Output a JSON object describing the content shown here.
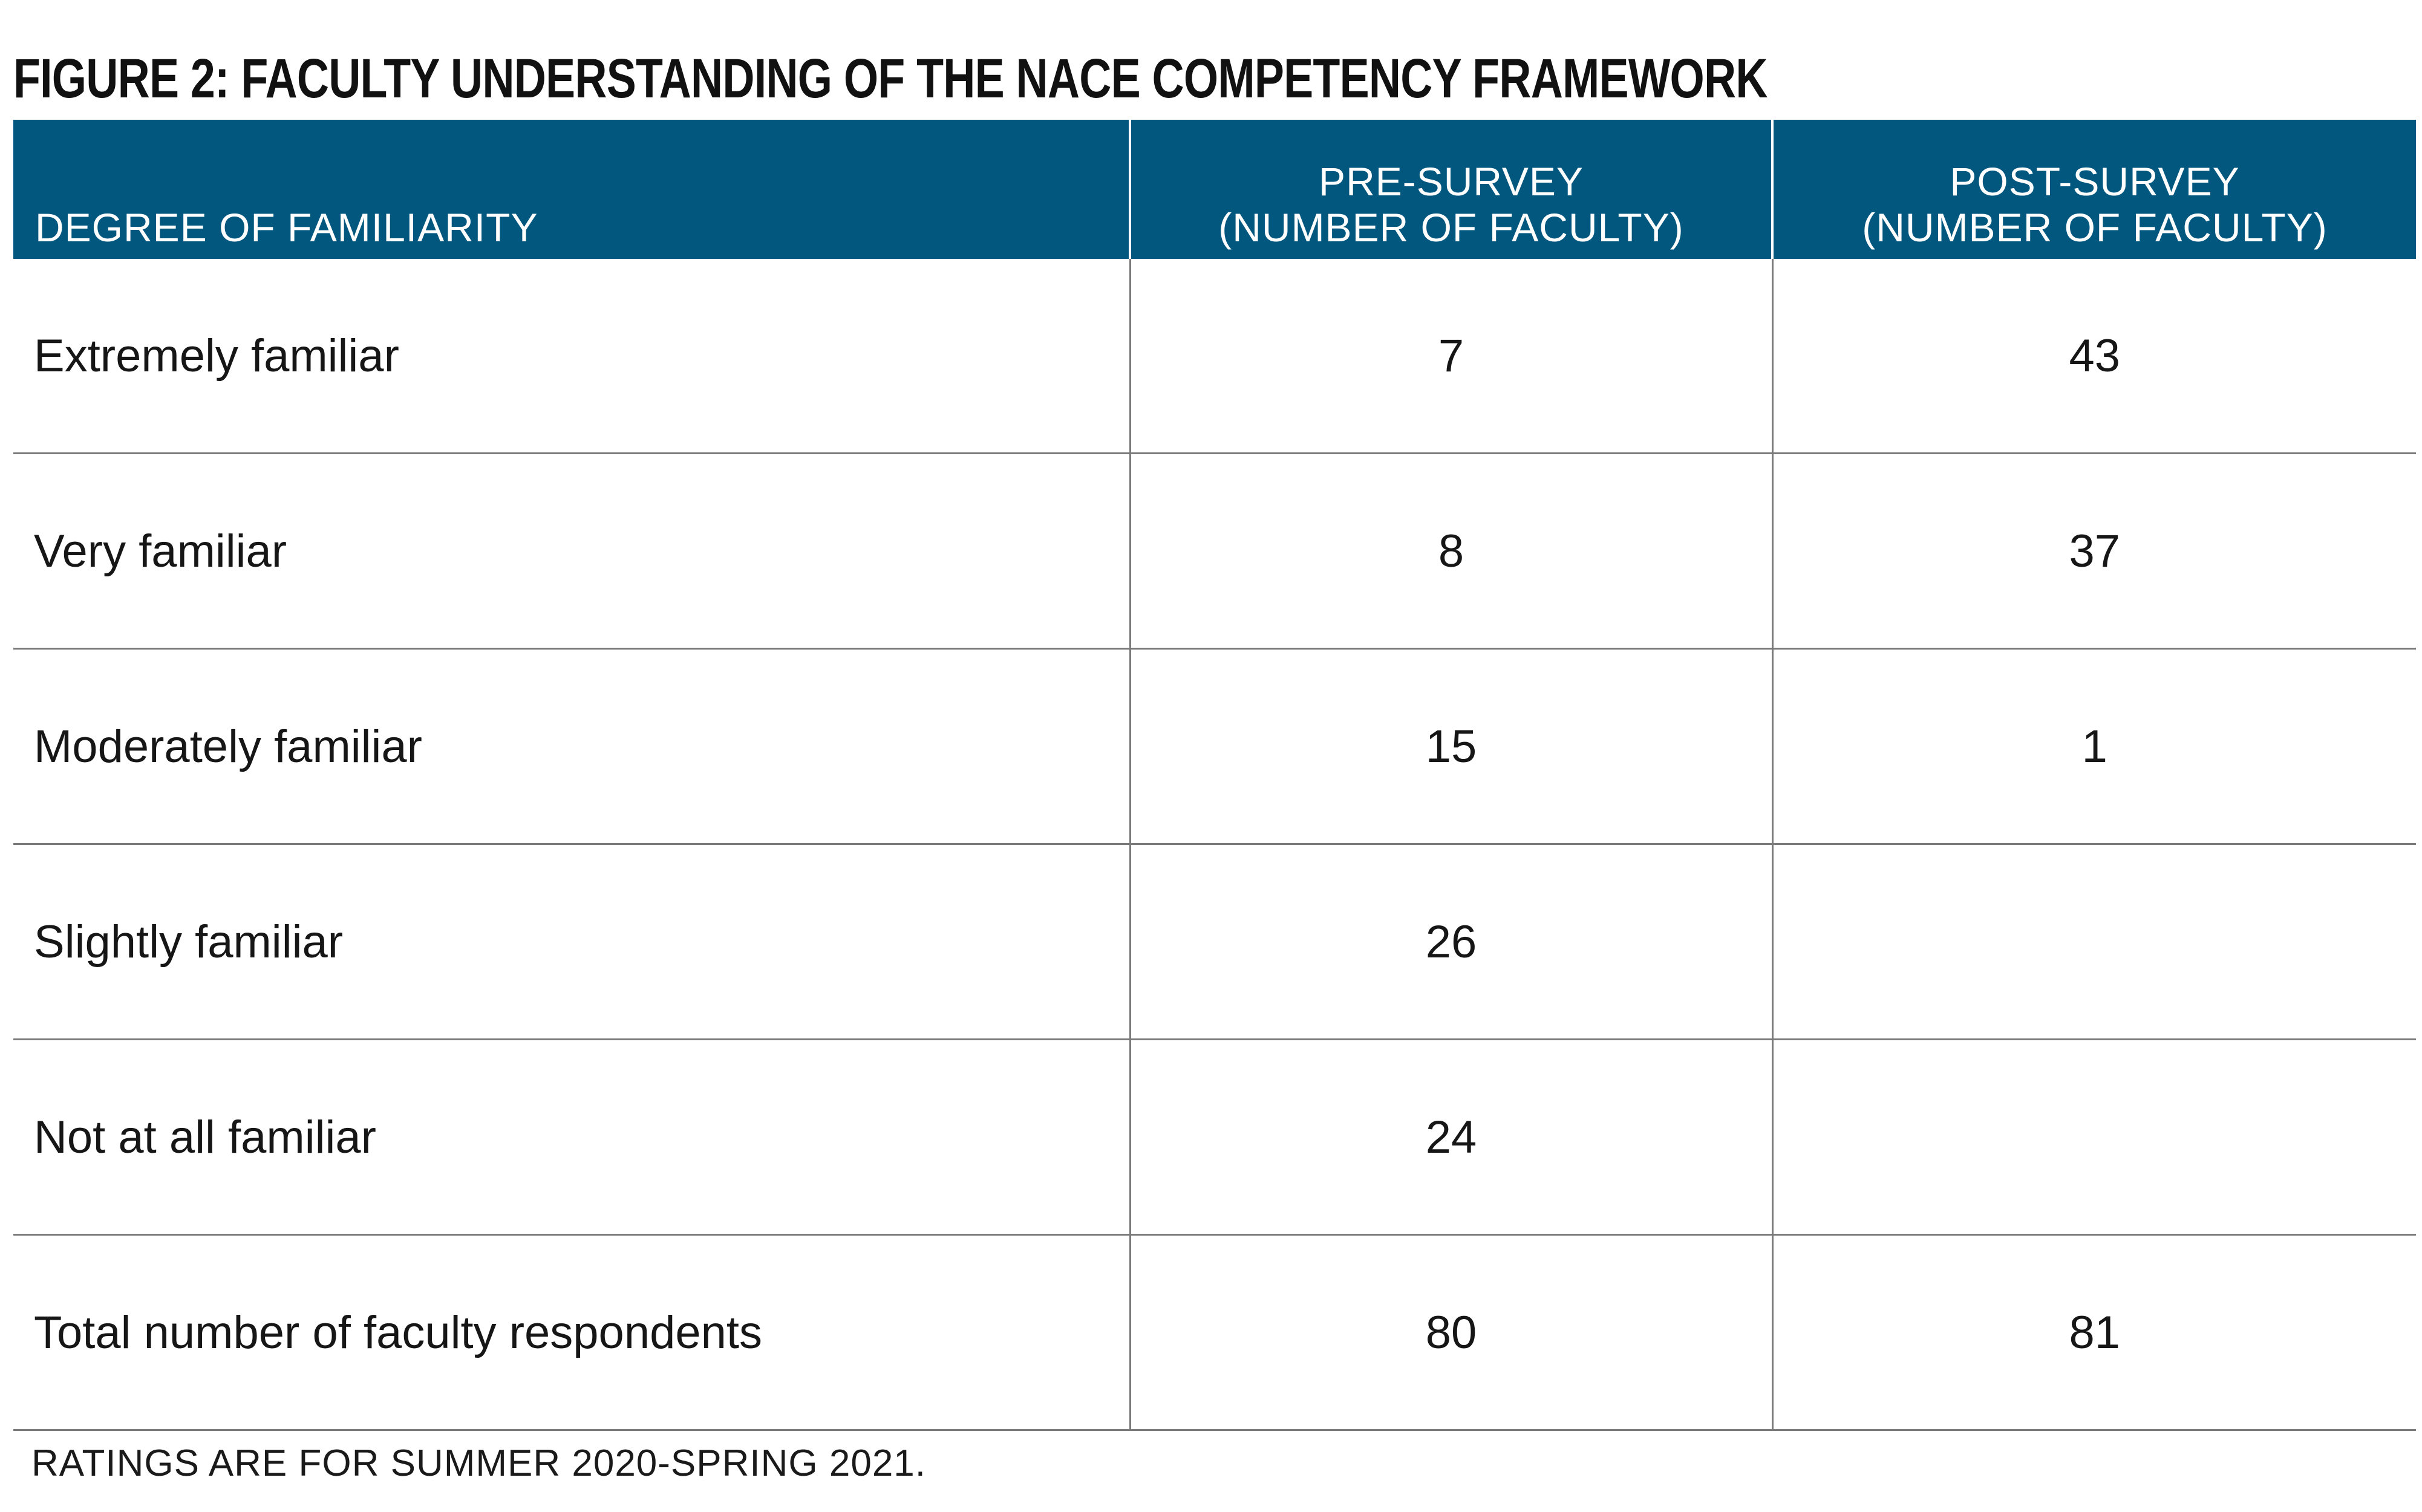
{
  "title": "FIGURE 2: FACULTY UNDERSTANDING OF THE NACE COMPETENCY FRAMEWORK",
  "table": {
    "headers": [
      {
        "line1": "",
        "line2": "DEGREE OF FAMILIARITY"
      },
      {
        "line1": "PRE-SURVEY",
        "line2": "(NUMBER OF FACULTY)"
      },
      {
        "line1": "POST-SURVEY",
        "line2": "(NUMBER OF FACULTY)"
      }
    ],
    "rows": [
      {
        "label": "Extremely familiar",
        "pre": "7",
        "post": "43"
      },
      {
        "label": "Very familiar",
        "pre": "8",
        "post": "37"
      },
      {
        "label": "Moderately familiar",
        "pre": "15",
        "post": "1"
      },
      {
        "label": "Slightly familiar",
        "pre": "26",
        "post": ""
      },
      {
        "label": "Not at all familiar",
        "pre": "24",
        "post": ""
      },
      {
        "label": "Total number of faculty respondents",
        "pre": "80",
        "post": "81"
      }
    ]
  },
  "footnote": "RATINGS ARE FOR SUMMER 2020-SPRING 2021.",
  "colors": {
    "header_bg": "#02577f",
    "header_text": "#ffffff",
    "rule": "#7a7a7a"
  }
}
